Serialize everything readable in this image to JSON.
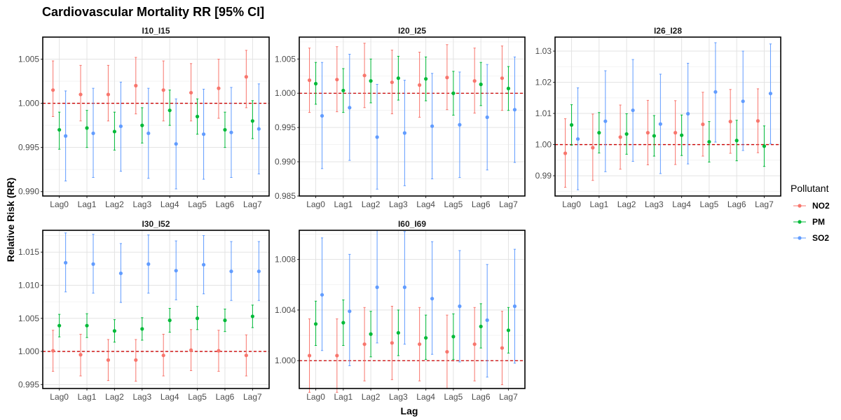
{
  "chart_data": {
    "type": "scatter",
    "subtype": "point-range (estimate with 95% CI error bars), faceted",
    "title": "Cardiovascular Mortality RR [95% CI]",
    "xlabel": "Lag",
    "ylabel": "Relative Risk (RR)",
    "categories": [
      "Lag0",
      "Lag1",
      "Lag2",
      "Lag3",
      "Lag4",
      "Lag5",
      "Lag6",
      "Lag7"
    ],
    "reference_line": {
      "y": 1.0,
      "style": "dashed",
      "color": "#CC0000"
    },
    "legend": {
      "title": "Pollutant",
      "position": "right",
      "entries": [
        {
          "name": "NO2",
          "color": "#F8766D"
        },
        {
          "name": "PM",
          "color": "#00BA38"
        },
        {
          "name": "SO2",
          "color": "#619CFF"
        }
      ]
    },
    "grid": true,
    "panels": [
      {
        "title": "I10_I15",
        "ylim": [
          0.9895,
          1.0075
        ],
        "yticks": [
          0.99,
          0.995,
          1.0,
          1.005
        ],
        "ytick_labels": [
          "0.990",
          "0.995",
          "1.000",
          "1.005"
        ],
        "series": [
          {
            "name": "NO2",
            "rr": [
              1.0015,
              1.001,
              1.001,
              1.002,
              1.0015,
              1.0012,
              1.0017,
              1.003
            ],
            "lo": [
              0.9985,
              0.998,
              0.998,
              0.9988,
              0.998,
              0.998,
              0.9983,
              0.9995
            ],
            "hi": [
              1.0048,
              1.0043,
              1.0043,
              1.0052,
              1.0048,
              1.0045,
              1.005,
              1.006
            ]
          },
          {
            "name": "PM",
            "rr": [
              0.997,
              0.9972,
              0.9968,
              0.9975,
              0.9992,
              0.9985,
              0.997,
              0.998
            ],
            "lo": [
              0.9948,
              0.995,
              0.9947,
              0.9955,
              0.9975,
              0.9965,
              0.995,
              0.996
            ],
            "hi": [
              0.999,
              0.9992,
              0.999,
              0.9995,
              1.0015,
              1.0005,
              0.999,
              1.0003
            ]
          },
          {
            "name": "SO2",
            "rr": [
              0.9963,
              0.9966,
              0.9974,
              0.9966,
              0.9954,
              0.9965,
              0.9967,
              0.9971
            ],
            "lo": [
              0.9912,
              0.9916,
              0.9923,
              0.9915,
              0.9903,
              0.9914,
              0.9916,
              0.992
            ],
            "hi": [
              1.0014,
              1.0017,
              1.0024,
              1.0017,
              1.0005,
              1.0016,
              1.0018,
              1.0022
            ]
          }
        ]
      },
      {
        "title": "I20_I25",
        "ylim": [
          0.985,
          1.0082
        ],
        "yticks": [
          0.985,
          0.99,
          0.995,
          1.0,
          1.005
        ],
        "ytick_labels": [
          "0.985",
          "0.990",
          "0.995",
          "1.000",
          "1.005"
        ],
        "series": [
          {
            "name": "NO2",
            "rr": [
              1.0019,
              1.002,
              1.0026,
              1.0016,
              1.0012,
              1.0023,
              1.0018,
              1.0022
            ],
            "lo": [
              0.9972,
              0.9973,
              0.9979,
              0.997,
              0.9965,
              0.9976,
              0.9971,
              0.9975
            ],
            "hi": [
              1.0066,
              1.0068,
              1.0073,
              1.0063,
              1.006,
              1.0071,
              1.0066,
              1.0069
            ]
          },
          {
            "name": "PM",
            "rr": [
              1.0014,
              1.0004,
              1.0018,
              1.0022,
              1.0021,
              1.0,
              1.0013,
              1.0007
            ],
            "lo": [
              0.9984,
              0.9972,
              0.9986,
              0.999,
              0.9989,
              0.9968,
              0.9982,
              0.9975
            ],
            "hi": [
              1.0045,
              1.0036,
              1.005,
              1.0054,
              1.0053,
              1.0032,
              1.0045,
              1.0039
            ]
          },
          {
            "name": "SO2",
            "rr": [
              0.9967,
              0.9979,
              0.9936,
              0.9942,
              0.9952,
              0.9954,
              0.9965,
              0.9976
            ],
            "lo": [
              0.989,
              0.9902,
              0.986,
              0.9865,
              0.9875,
              0.9877,
              0.9888,
              0.9899
            ],
            "hi": [
              1.0045,
              1.0057,
              1.0013,
              1.0019,
              1.0029,
              1.0031,
              1.0042,
              1.0053
            ]
          }
        ]
      },
      {
        "title": "I26_I28",
        "ylim": [
          0.9835,
          1.0345
        ],
        "yticks": [
          0.99,
          1.0,
          1.01,
          1.02,
          1.03
        ],
        "ytick_labels": [
          "0.99",
          "1.00",
          "1.01",
          "1.02",
          "1.03"
        ],
        "series": [
          {
            "name": "NO2",
            "rr": [
              0.9972,
              0.999,
              1.0024,
              1.0038,
              1.0038,
              1.0065,
              1.0074,
              1.0076
            ],
            "lo": [
              0.9863,
              0.9885,
              0.9921,
              0.9935,
              0.9936,
              0.9963,
              0.9972,
              0.9974
            ],
            "hi": [
              1.0083,
              1.0098,
              1.0127,
              1.0142,
              1.0141,
              1.0168,
              1.0177,
              1.0179
            ]
          },
          {
            "name": "PM",
            "rr": [
              1.0063,
              1.0038,
              1.0034,
              1.0028,
              1.003,
              1.0009,
              1.0013,
              0.9995
            ],
            "lo": [
              0.9998,
              0.9973,
              0.9969,
              0.9963,
              0.9965,
              0.9944,
              0.9948,
              0.993
            ],
            "hi": [
              1.0128,
              1.0103,
              1.0099,
              1.0093,
              1.0095,
              1.0074,
              1.0078,
              1.006
            ]
          },
          {
            "name": "SO2",
            "rr": [
              1.0018,
              1.0075,
              1.011,
              1.0066,
              1.0099,
              1.0169,
              1.0139,
              1.0164
            ],
            "lo": [
              0.9855,
              0.9913,
              0.9946,
              0.9907,
              0.9938,
              1.0008,
              0.9981,
              1.0003
            ],
            "hi": [
              1.0182,
              1.0237,
              1.0273,
              1.0226,
              1.0261,
              1.0327,
              1.03,
              1.0323
            ]
          }
        ]
      },
      {
        "title": "I30_I52",
        "ylim": [
          0.9944,
          1.0183
        ],
        "yticks": [
          0.995,
          1.0,
          1.005,
          1.01,
          1.015
        ],
        "ytick_labels": [
          "0.995",
          "1.000",
          "1.005",
          "1.010",
          "1.015"
        ],
        "series": [
          {
            "name": "NO2",
            "rr": [
              1.0001,
              0.9995,
              0.9987,
              0.9987,
              0.9994,
              1.0002,
              1.0001,
              0.9994
            ],
            "lo": [
              0.997,
              0.9963,
              0.9956,
              0.9955,
              0.9963,
              0.9971,
              0.997,
              0.9963
            ],
            "hi": [
              1.0032,
              1.0026,
              1.0018,
              1.0018,
              1.0026,
              1.0033,
              1.0032,
              1.0025
            ]
          },
          {
            "name": "PM",
            "rr": [
              1.0039,
              1.0039,
              1.0031,
              1.0034,
              1.0047,
              1.005,
              1.0047,
              1.0053
            ],
            "lo": [
              1.0022,
              1.0021,
              1.0014,
              1.0017,
              1.0029,
              1.0033,
              1.003,
              1.0036
            ],
            "hi": [
              1.0056,
              1.0057,
              1.0048,
              1.0051,
              1.0065,
              1.0068,
              1.0064,
              1.007
            ]
          },
          {
            "name": "SO2",
            "rr": [
              1.0134,
              1.0132,
              1.0118,
              1.0132,
              1.0122,
              1.0131,
              1.0121,
              1.0121
            ],
            "lo": [
              1.009,
              1.0088,
              1.0074,
              1.0088,
              1.0078,
              1.0087,
              1.0077,
              1.0077
            ],
            "hi": [
              1.0179,
              1.0177,
              1.0163,
              1.0176,
              1.0167,
              1.0175,
              1.0166,
              1.0166
            ]
          }
        ]
      },
      {
        "title": "I60_I69",
        "ylim": [
          0.9978,
          1.0103
        ],
        "yticks": [
          1.0,
          1.004,
          1.008
        ],
        "ytick_labels": [
          "1.000",
          "1.004",
          "1.008"
        ],
        "series": [
          {
            "name": "NO2",
            "rr": [
              1.0004,
              1.0004,
              1.0013,
              1.0014,
              1.0013,
              1.0007,
              1.0013,
              1.001
            ],
            "lo": [
              0.9975,
              0.9975,
              0.9984,
              0.9985,
              0.9984,
              0.9978,
              0.9984,
              0.9981
            ],
            "hi": [
              1.0033,
              1.0033,
              1.0042,
              1.0043,
              1.0042,
              1.0036,
              1.0042,
              1.0039
            ]
          },
          {
            "name": "PM",
            "rr": [
              1.0029,
              1.003,
              1.0021,
              1.0022,
              1.0018,
              1.0019,
              1.0027,
              1.0024
            ],
            "lo": [
              1.0012,
              1.0012,
              1.0003,
              1.0004,
              1.0001,
              1.0001,
              1.001,
              1.0006
            ],
            "hi": [
              1.0047,
              1.0048,
              1.0039,
              1.004,
              1.0036,
              1.0037,
              1.0045,
              1.0042
            ]
          },
          {
            "name": "SO2",
            "rr": [
              1.0052,
              1.0039,
              1.0058,
              1.0058,
              1.0049,
              1.0043,
              1.0032,
              1.0043
            ],
            "lo": [
              1.0008,
              0.9996,
              1.0014,
              1.0013,
              1.0005,
              0.9999,
              0.9987,
              0.9998
            ],
            "hi": [
              1.0097,
              1.0084,
              1.0103,
              1.0102,
              1.0094,
              1.0087,
              1.0076,
              1.0088
            ]
          }
        ]
      }
    ]
  }
}
